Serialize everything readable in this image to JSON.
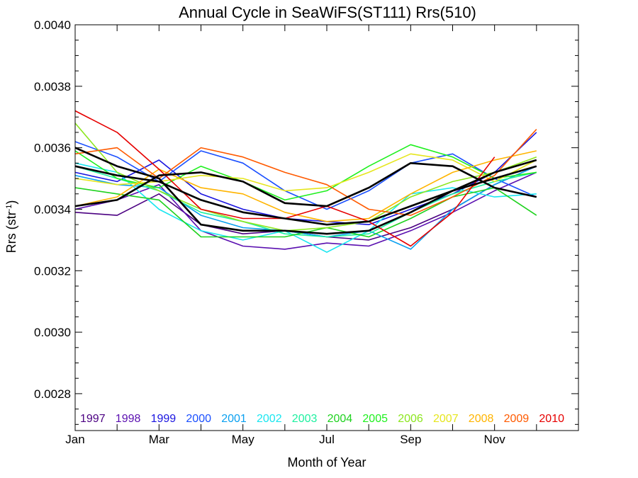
{
  "chart_data": {
    "type": "line",
    "title": "Annual Cycle in SeaWiFS(ST111) Rrs(510)",
    "xlabel": "Month of Year",
    "ylabel_main": "Rrs (str",
    "ylabel_sup": "-1",
    "ylabel_close": ")",
    "xlim": [
      1,
      13
    ],
    "ylim": [
      0.00268,
      0.004
    ],
    "x_ticks": [
      {
        "value": 1,
        "label": "Jan"
      },
      {
        "value": 3,
        "label": "Mar"
      },
      {
        "value": 5,
        "label": "May"
      },
      {
        "value": 7,
        "label": "Jul"
      },
      {
        "value": 9,
        "label": "Sep"
      },
      {
        "value": 11,
        "label": "Nov"
      }
    ],
    "y_ticks": [
      {
        "value": 0.0028,
        "label": "0.0028"
      },
      {
        "value": 0.003,
        "label": "0.0030"
      },
      {
        "value": 0.0032,
        "label": "0.0032"
      },
      {
        "value": 0.0034,
        "label": "0.0034"
      },
      {
        "value": 0.0036,
        "label": "0.0036"
      },
      {
        "value": 0.0038,
        "label": "0.0038"
      },
      {
        "value": 0.004,
        "label": "0.0040"
      }
    ],
    "grid": false,
    "legend_placement": "bottom",
    "x": [
      1,
      2,
      3,
      4,
      5,
      6,
      7,
      8,
      9,
      10,
      11,
      12
    ],
    "series": [
      {
        "name": "1997",
        "color": "#4b0082",
        "values": [
          0.00339,
          0.00338,
          0.00345,
          0.00335,
          0.00332,
          0.00333,
          0.00331,
          0.0033,
          0.00334,
          0.0034,
          0.00348,
          0.00354
        ]
      },
      {
        "name": "1998",
        "color": "#5a0fb0",
        "values": [
          0.0034,
          0.00343,
          0.00348,
          0.00333,
          0.00328,
          0.00327,
          0.00329,
          0.00328,
          0.00333,
          0.00339,
          0.00346,
          0.00352
        ]
      },
      {
        "name": "1999",
        "color": "#1a14e0",
        "values": [
          0.00352,
          0.00349,
          0.00356,
          0.00345,
          0.0034,
          0.00337,
          0.00336,
          0.00335,
          0.0034,
          0.00345,
          0.00352,
          0.00365
        ]
      },
      {
        "name": "2000",
        "color": "#1a4fff",
        "values": [
          0.00362,
          0.00357,
          0.00349,
          0.00359,
          0.00355,
          0.00346,
          0.0034,
          0.00346,
          0.00355,
          0.00358,
          0.0035,
          0.00344
        ]
      },
      {
        "name": "2001",
        "color": "#0aa0f0",
        "values": [
          0.00351,
          0.00348,
          0.00347,
          0.00338,
          0.00334,
          0.00333,
          0.00331,
          0.00333,
          0.00327,
          0.0034,
          0.00348,
          0.00354
        ]
      },
      {
        "name": "2002",
        "color": "#19e6f0",
        "values": [
          0.00355,
          0.00352,
          0.0034,
          0.00333,
          0.0033,
          0.00333,
          0.00326,
          0.00333,
          0.00345,
          0.00347,
          0.00344,
          0.00345
        ]
      },
      {
        "name": "2003",
        "color": "#1ef0a0",
        "values": [
          0.00354,
          0.0035,
          0.00346,
          0.00339,
          0.00336,
          0.00332,
          0.00331,
          0.00332,
          0.00339,
          0.00345,
          0.00349,
          0.00352
        ]
      },
      {
        "name": "2004",
        "color": "#1ed21e",
        "values": [
          0.00347,
          0.00345,
          0.00343,
          0.00331,
          0.00331,
          0.00331,
          0.00334,
          0.00331,
          0.00337,
          0.00344,
          0.00347,
          0.00338
        ]
      },
      {
        "name": "2005",
        "color": "#1ef01e",
        "values": [
          0.00359,
          0.0035,
          0.00347,
          0.00354,
          0.00349,
          0.00343,
          0.00346,
          0.00354,
          0.00361,
          0.00357,
          0.0035,
          0.00352
        ]
      },
      {
        "name": "2006",
        "color": "#8ce61e",
        "values": [
          0.00368,
          0.00352,
          0.00346,
          0.0034,
          0.00336,
          0.00333,
          0.00334,
          0.00336,
          0.00344,
          0.00349,
          0.00352,
          0.00357
        ]
      },
      {
        "name": "2007",
        "color": "#e6e61e",
        "values": [
          0.0035,
          0.00348,
          0.00349,
          0.00351,
          0.0035,
          0.00346,
          0.00347,
          0.00352,
          0.00358,
          0.00356,
          0.00349,
          0.00356
        ]
      },
      {
        "name": "2008",
        "color": "#ffb400",
        "values": [
          0.00341,
          0.00344,
          0.00353,
          0.00347,
          0.00345,
          0.00339,
          0.00336,
          0.00337,
          0.00345,
          0.00352,
          0.00356,
          0.00359
        ]
      },
      {
        "name": "2009",
        "color": "#ff5a00",
        "values": [
          0.00358,
          0.0036,
          0.0035,
          0.0036,
          0.00357,
          0.00352,
          0.00348,
          0.0034,
          0.00338,
          0.00344,
          0.00351,
          0.00366
        ]
      },
      {
        "name": "2010",
        "color": "#e60000",
        "values": [
          0.00372,
          0.00365,
          0.00353,
          0.0034,
          0.00337,
          0.00337,
          0.00341,
          0.00336,
          0.00328,
          0.00339,
          0.00357,
          null
        ]
      },
      {
        "name": "",
        "color": "#000000",
        "values": [
          0.00354,
          0.00351,
          0.00349,
          0.00343,
          0.00339,
          0.00337,
          0.00335,
          0.00336,
          0.00341,
          0.00346,
          0.0035,
          0.00354
        ]
      },
      {
        "name": "",
        "color": "#000000",
        "values": [
          0.0036,
          0.00354,
          0.0035,
          0.00335,
          0.00333,
          0.00333,
          0.00332,
          0.00333,
          0.00339,
          0.00346,
          0.00352,
          0.00356
        ]
      },
      {
        "name": "",
        "color": "#000000",
        "values": [
          0.00341,
          0.00343,
          0.00351,
          0.00352,
          0.00349,
          0.00342,
          0.00341,
          0.00347,
          0.00355,
          0.00354,
          0.00347,
          0.00344
        ]
      }
    ]
  }
}
